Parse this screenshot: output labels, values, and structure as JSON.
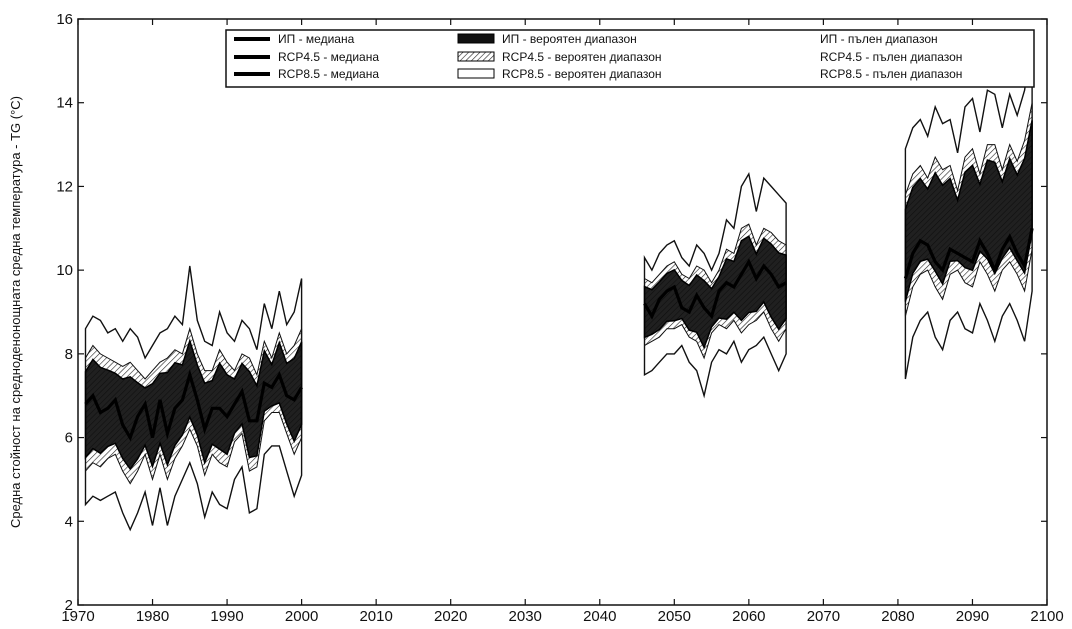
{
  "chart_data": {
    "type": "area",
    "ylabel": "Средна стойност на средноденонощната средна температура - TG (°C)",
    "xlim": [
      1970,
      2100
    ],
    "ylim": [
      2,
      16
    ],
    "xticks": [
      1970,
      1980,
      1990,
      2000,
      2010,
      2020,
      2030,
      2040,
      2050,
      2060,
      2070,
      2080,
      2090,
      2100
    ],
    "yticks": [
      2,
      4,
      6,
      8,
      10,
      12,
      14,
      16
    ],
    "grid": false,
    "legend_position": "top-right",
    "legend": [
      {
        "label": "ИП - медиана",
        "style": "median"
      },
      {
        "label": "ИП - вероятен диапазон",
        "style": "likely-dark"
      },
      {
        "label": "ИП - пълен диапазон",
        "style": "none"
      },
      {
        "label": "RCP4.5 - медиана",
        "style": "median"
      },
      {
        "label": "RCP4.5 - вероятен диапазон",
        "style": "likely-hatched"
      },
      {
        "label": "RCP4.5 - пълен диапазон",
        "style": "none"
      },
      {
        "label": "RCP8.5 - медиана",
        "style": "median"
      },
      {
        "label": "RCP8.5 - вероятен диапазон",
        "style": "likely-light"
      },
      {
        "label": "RCP8.5 - пълен диапазон",
        "style": "none"
      }
    ],
    "periods": [
      {
        "name": "1971-2000",
        "years": [
          1971,
          1972,
          1973,
          1974,
          1975,
          1976,
          1977,
          1978,
          1979,
          1980,
          1981,
          1982,
          1983,
          1984,
          1985,
          1986,
          1987,
          1988,
          1989,
          1990,
          1991,
          1992,
          1993,
          1994,
          1995,
          1996,
          1997,
          1998,
          1999,
          2000
        ],
        "full_min": [
          4.4,
          4.6,
          4.5,
          4.6,
          4.7,
          4.2,
          3.8,
          4.2,
          4.7,
          3.9,
          4.8,
          3.9,
          4.6,
          5.0,
          5.4,
          4.9,
          4.1,
          4.7,
          4.4,
          4.3,
          5.0,
          5.3,
          4.2,
          4.3,
          5.6,
          5.8,
          5.8,
          5.2,
          4.6,
          5.1
        ],
        "full_max": [
          8.6,
          8.9,
          8.8,
          8.5,
          8.6,
          8.3,
          8.6,
          8.4,
          7.9,
          8.2,
          8.5,
          8.6,
          8.9,
          8.7,
          10.1,
          8.8,
          8.3,
          8.2,
          9.0,
          8.5,
          8.3,
          8.8,
          8.6,
          8.1,
          9.2,
          8.6,
          9.5,
          8.7,
          9.0,
          9.8
        ],
        "likely_min": [
          5.2,
          5.4,
          5.3,
          5.5,
          5.6,
          5.2,
          4.9,
          5.2,
          5.6,
          5.0,
          5.6,
          5.0,
          5.5,
          5.8,
          6.2,
          5.8,
          5.1,
          5.6,
          5.4,
          5.3,
          5.9,
          6.1,
          5.2,
          5.3,
          6.4,
          6.6,
          6.6,
          6.1,
          5.6,
          6.0
        ],
        "likely_max": [
          7.9,
          8.2,
          8.0,
          7.9,
          7.8,
          7.7,
          7.8,
          7.6,
          7.4,
          7.6,
          7.8,
          7.9,
          8.1,
          8.0,
          8.6,
          8.0,
          7.6,
          7.6,
          8.1,
          7.8,
          7.6,
          8.0,
          7.9,
          7.5,
          8.3,
          7.9,
          8.5,
          8.0,
          8.2,
          8.6
        ],
        "median": [
          6.8,
          7.0,
          6.6,
          6.7,
          6.9,
          6.3,
          6.0,
          6.5,
          6.8,
          6.0,
          6.9,
          6.1,
          6.7,
          6.9,
          7.5,
          6.9,
          6.2,
          6.7,
          6.7,
          6.5,
          6.8,
          7.1,
          6.4,
          6.4,
          7.3,
          7.2,
          7.5,
          7.0,
          6.9,
          7.2
        ]
      },
      {
        "name": "2046-2065",
        "years": [
          2046,
          2047,
          2048,
          2049,
          2050,
          2051,
          2052,
          2053,
          2054,
          2055,
          2056,
          2057,
          2058,
          2059,
          2060,
          2061,
          2062,
          2063,
          2064,
          2065
        ],
        "full_min": [
          7.5,
          7.6,
          7.8,
          8.0,
          8.0,
          8.2,
          7.8,
          7.6,
          7.0,
          7.8,
          8.1,
          8.0,
          8.3,
          7.8,
          8.1,
          8.2,
          8.4,
          8.0,
          7.6,
          8.0
        ],
        "full_max": [
          10.3,
          10.0,
          10.4,
          10.6,
          10.7,
          10.3,
          10.1,
          10.6,
          10.4,
          10.0,
          10.4,
          11.2,
          11.0,
          12.0,
          12.3,
          11.4,
          12.2,
          12.0,
          11.8,
          11.6
        ],
        "likely_min": [
          8.2,
          8.3,
          8.4,
          8.6,
          8.6,
          8.7,
          8.4,
          8.3,
          7.9,
          8.5,
          8.7,
          8.6,
          8.8,
          8.5,
          8.7,
          8.8,
          9.0,
          8.6,
          8.3,
          8.6
        ],
        "likely_max": [
          9.8,
          9.7,
          9.9,
          10.1,
          10.2,
          9.9,
          9.8,
          10.1,
          10.0,
          9.7,
          10.0,
          10.5,
          10.4,
          11.0,
          11.1,
          10.6,
          11.0,
          10.9,
          10.7,
          10.6
        ],
        "median": [
          9.2,
          8.9,
          9.3,
          9.5,
          9.6,
          9.1,
          9.0,
          9.4,
          9.1,
          8.9,
          9.5,
          9.7,
          9.6,
          9.9,
          10.2,
          9.8,
          10.1,
          9.9,
          9.6,
          9.7
        ]
      },
      {
        "name": "2081-2098",
        "years": [
          2081,
          2082,
          2083,
          2084,
          2085,
          2086,
          2087,
          2088,
          2089,
          2090,
          2091,
          2092,
          2093,
          2094,
          2095,
          2096,
          2097,
          2098
        ],
        "full_min": [
          7.4,
          8.4,
          8.8,
          9.0,
          8.4,
          8.1,
          8.8,
          9.0,
          8.6,
          8.5,
          9.2,
          8.8,
          8.3,
          8.9,
          9.2,
          8.8,
          8.3,
          9.5
        ],
        "full_max": [
          12.9,
          13.4,
          13.6,
          13.2,
          13.9,
          13.5,
          13.6,
          12.8,
          13.9,
          14.1,
          13.3,
          14.3,
          14.2,
          13.4,
          14.2,
          13.7,
          14.3,
          15.6
        ],
        "likely_min": [
          8.9,
          9.6,
          9.9,
          10.0,
          9.6,
          9.3,
          9.9,
          10.0,
          9.7,
          9.6,
          10.2,
          9.9,
          9.5,
          10.0,
          10.2,
          9.9,
          9.5,
          10.5
        ],
        "likely_max": [
          11.8,
          12.3,
          12.5,
          12.2,
          12.7,
          12.4,
          12.5,
          11.9,
          12.7,
          12.9,
          12.3,
          13.0,
          13.0,
          12.4,
          13.0,
          12.6,
          13.1,
          14.0
        ],
        "median": [
          9.8,
          10.4,
          10.7,
          10.6,
          10.2,
          10.0,
          10.5,
          10.4,
          10.3,
          10.2,
          10.7,
          10.4,
          10.0,
          10.5,
          10.8,
          10.4,
          10.1,
          11.0
        ]
      }
    ]
  },
  "colors": {
    "ink": "#111111",
    "background": "#ffffff"
  }
}
